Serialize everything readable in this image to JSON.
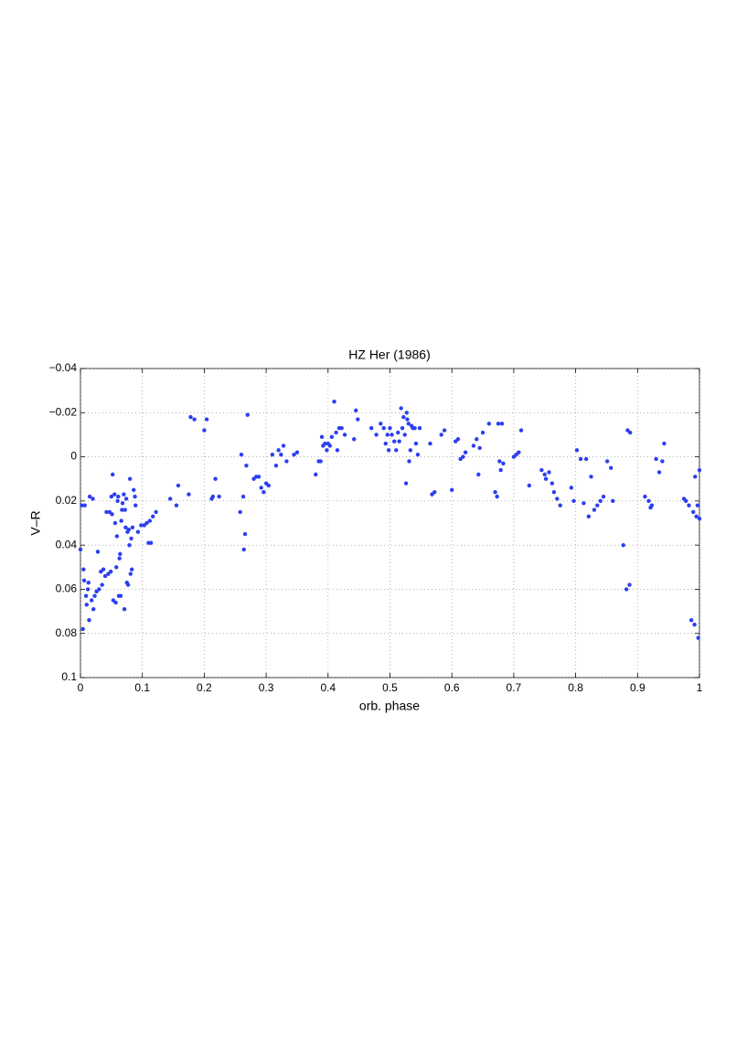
{
  "chart_data": {
    "type": "scatter",
    "title": "HZ Her (1986)",
    "x_label": "orb. phase",
    "y_label": "V–R",
    "color": "#2b3ff0",
    "grid": true,
    "y_reversed": true,
    "xlim": [
      0,
      1
    ],
    "xticks": [
      0,
      0.1,
      0.2,
      0.3,
      0.4,
      0.5,
      0.6,
      0.7,
      0.8,
      0.9,
      1
    ],
    "ylim": [
      -0.04,
      0.1
    ],
    "yticks": [
      {
        "value": -0.04,
        "label": "−0.04"
      },
      {
        "value": -0.02,
        "label": "−0.02"
      },
      0,
      0.02,
      0.04,
      0.06,
      0.08,
      0.1
    ],
    "x": [
      0.0,
      0.002,
      0.004,
      0.005,
      0.006,
      0.007,
      0.009,
      0.01,
      0.012,
      0.013,
      0.014,
      0.015,
      0.018,
      0.02,
      0.021,
      0.023,
      0.026,
      0.028,
      0.03,
      0.033,
      0.035,
      0.037,
      0.04,
      0.042,
      0.045,
      0.047,
      0.049,
      0.05,
      0.051,
      0.052,
      0.053,
      0.055,
      0.056,
      0.057,
      0.058,
      0.059,
      0.06,
      0.061,
      0.062,
      0.063,
      0.064,
      0.065,
      0.066,
      0.067,
      0.068,
      0.07,
      0.071,
      0.072,
      0.073,
      0.074,
      0.075,
      0.076,
      0.077,
      0.078,
      0.079,
      0.08,
      0.081,
      0.082,
      0.083,
      0.084,
      0.086,
      0.088,
      0.089,
      0.093,
      0.098,
      0.103,
      0.107,
      0.11,
      0.112,
      0.114,
      0.117,
      0.122,
      0.145,
      0.155,
      0.158,
      0.175,
      0.178,
      0.184,
      0.2,
      0.204,
      0.212,
      0.214,
      0.218,
      0.224,
      0.258,
      0.26,
      0.263,
      0.264,
      0.266,
      0.268,
      0.27,
      0.28,
      0.284,
      0.288,
      0.292,
      0.296,
      0.3,
      0.304,
      0.31,
      0.316,
      0.32,
      0.324,
      0.328,
      0.333,
      0.345,
      0.35,
      0.38,
      0.385,
      0.388,
      0.39,
      0.392,
      0.395,
      0.398,
      0.4,
      0.403,
      0.406,
      0.41,
      0.413,
      0.415,
      0.418,
      0.422,
      0.427,
      0.442,
      0.445,
      0.448,
      0.47,
      0.478,
      0.485,
      0.49,
      0.493,
      0.496,
      0.498,
      0.5,
      0.503,
      0.507,
      0.51,
      0.513,
      0.515,
      0.518,
      0.52,
      0.522,
      0.524,
      0.526,
      0.527,
      0.528,
      0.53,
      0.531,
      0.533,
      0.535,
      0.537,
      0.54,
      0.542,
      0.545,
      0.548,
      0.565,
      0.568,
      0.572,
      0.583,
      0.588,
      0.6,
      0.606,
      0.61,
      0.614,
      0.618,
      0.622,
      0.635,
      0.64,
      0.643,
      0.645,
      0.65,
      0.66,
      0.67,
      0.673,
      0.675,
      0.677,
      0.679,
      0.681,
      0.683,
      0.7,
      0.704,
      0.708,
      0.712,
      0.725,
      0.745,
      0.75,
      0.752,
      0.757,
      0.762,
      0.765,
      0.77,
      0.775,
      0.793,
      0.797,
      0.802,
      0.808,
      0.813,
      0.817,
      0.821,
      0.825,
      0.83,
      0.835,
      0.84,
      0.845,
      0.851,
      0.857,
      0.86,
      0.877,
      0.882,
      0.884,
      0.887,
      0.888,
      0.912,
      0.918,
      0.921,
      0.923,
      0.93,
      0.935,
      0.94,
      0.943,
      0.975,
      0.978,
      0.983,
      0.987,
      0.99,
      0.992,
      0.993,
      0.995,
      0.997,
      0.998,
      1.0,
      1.0
    ],
    "values": [
      0.042,
      0.022,
      0.078,
      0.051,
      0.056,
      0.022,
      0.063,
      0.067,
      0.06,
      0.057,
      0.074,
      0.018,
      0.065,
      0.019,
      0.069,
      0.063,
      0.061,
      0.043,
      0.06,
      0.052,
      0.058,
      0.051,
      0.054,
      0.025,
      0.053,
      0.025,
      0.052,
      0.018,
      0.026,
      0.008,
      0.065,
      0.017,
      0.03,
      0.066,
      0.05,
      0.036,
      0.02,
      0.018,
      0.063,
      0.046,
      0.044,
      0.063,
      0.029,
      0.024,
      0.021,
      0.017,
      0.069,
      0.024,
      0.032,
      0.019,
      0.057,
      0.034,
      0.058,
      0.033,
      0.04,
      0.01,
      0.053,
      0.037,
      0.051,
      0.032,
      0.015,
      0.018,
      0.022,
      0.034,
      0.031,
      0.031,
      0.03,
      0.039,
      0.029,
      0.039,
      0.027,
      0.025,
      0.019,
      0.022,
      0.013,
      0.017,
      -0.018,
      -0.017,
      -0.012,
      -0.017,
      0.019,
      0.018,
      0.01,
      0.018,
      0.025,
      -0.001,
      0.018,
      0.042,
      0.035,
      0.004,
      -0.019,
      0.01,
      0.009,
      0.009,
      0.014,
      0.016,
      0.012,
      0.013,
      -0.001,
      0.004,
      -0.003,
      -0.001,
      -0.005,
      0.002,
      -0.001,
      -0.002,
      0.008,
      0.002,
      0.002,
      -0.009,
      -0.005,
      -0.006,
      -0.003,
      -0.006,
      -0.005,
      -0.009,
      -0.025,
      -0.011,
      -0.003,
      -0.013,
      -0.013,
      -0.01,
      -0.008,
      -0.021,
      -0.017,
      -0.013,
      -0.01,
      -0.015,
      -0.013,
      -0.006,
      -0.01,
      -0.003,
      -0.013,
      -0.01,
      -0.007,
      -0.003,
      -0.011,
      -0.007,
      -0.022,
      -0.013,
      -0.018,
      -0.01,
      0.012,
      -0.02,
      -0.017,
      -0.015,
      0.002,
      -0.003,
      -0.014,
      -0.013,
      -0.013,
      -0.006,
      -0.001,
      -0.013,
      -0.006,
      0.017,
      0.016,
      -0.01,
      -0.012,
      0.015,
      -0.007,
      -0.008,
      0.001,
      0.0,
      -0.002,
      -0.005,
      -0.008,
      0.008,
      -0.004,
      -0.011,
      -0.015,
      0.016,
      0.018,
      -0.015,
      0.002,
      0.006,
      -0.015,
      0.003,
      0.0,
      -0.001,
      -0.002,
      -0.012,
      0.013,
      0.006,
      0.008,
      0.01,
      0.007,
      0.012,
      0.016,
      0.019,
      0.022,
      0.014,
      0.02,
      -0.003,
      0.001,
      0.021,
      0.001,
      0.027,
      0.009,
      0.024,
      0.022,
      0.02,
      0.018,
      0.002,
      0.005,
      0.02,
      0.04,
      0.06,
      -0.012,
      0.058,
      -0.011,
      0.018,
      0.02,
      0.023,
      0.022,
      0.001,
      0.007,
      0.002,
      -0.006,
      0.019,
      0.02,
      0.022,
      0.074,
      0.025,
      0.076,
      0.009,
      0.027,
      0.022,
      0.082,
      0.006,
      0.028
    ]
  }
}
